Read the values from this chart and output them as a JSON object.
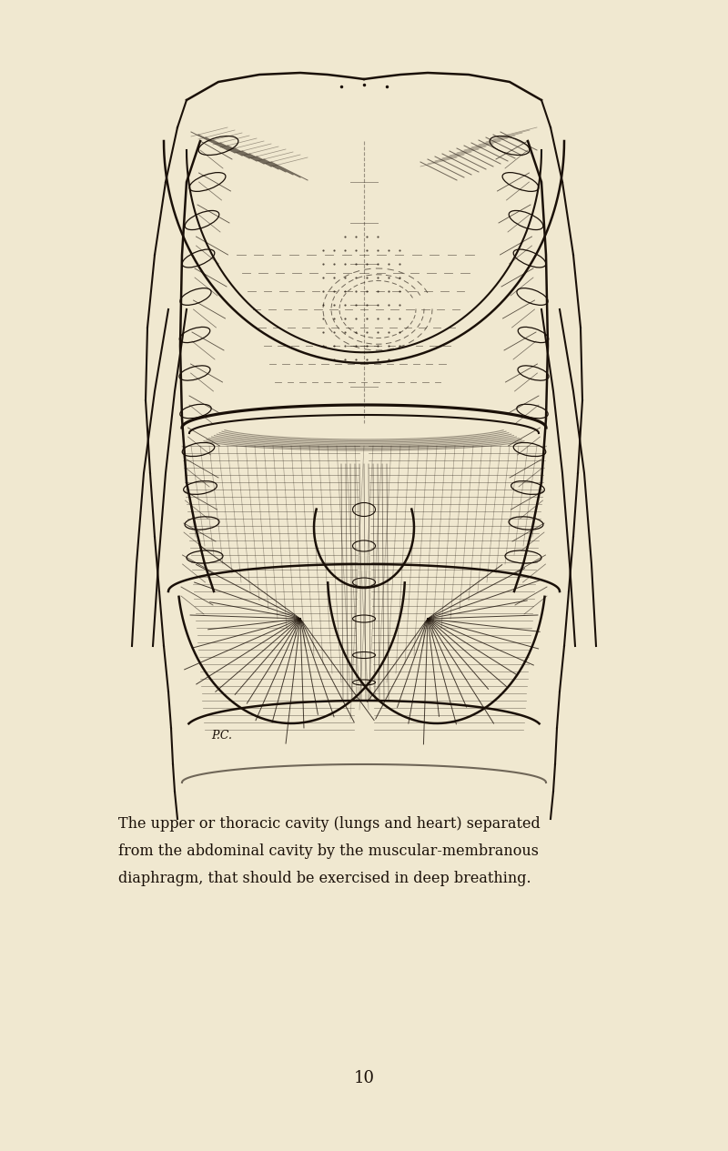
{
  "background_color": "#f0e8d0",
  "ink_color": "#1a1008",
  "caption_line1": "The upper or thoracic cavity (lungs and heart) separated",
  "caption_line2": "from the abdominal cavity by the muscular-membranous",
  "caption_line3": "diaphragm, that should be exercised in deep breathing.",
  "page_number": "10",
  "signature": "P.C.",
  "fig_width": 8.0,
  "fig_height": 12.65
}
